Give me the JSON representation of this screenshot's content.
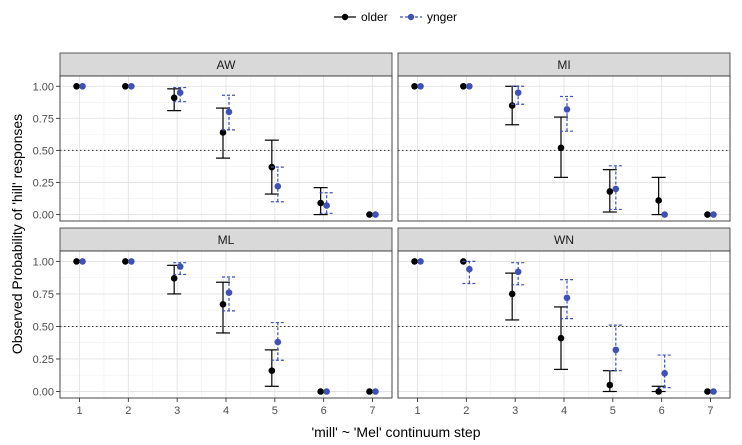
{
  "chart_data": {
    "type": "scatter",
    "xlabel": "'mill' ~ 'Mel' continuum step",
    "ylabel": "Observed Probability of 'hill' responses",
    "x": [
      1,
      2,
      3,
      4,
      5,
      6,
      7
    ],
    "xlim": [
      0.6,
      7.4
    ],
    "ylim": [
      -0.05,
      1.08
    ],
    "yticks": [
      "0.00",
      "0.25",
      "0.50",
      "0.75",
      "1.00"
    ],
    "reference_line": 0.5,
    "grid": true,
    "legend_position": "top",
    "colors": {
      "older": "#000000",
      "ynger": "#3f51b5"
    },
    "legend": [
      {
        "key": "older",
        "label": "older"
      },
      {
        "key": "ynger",
        "label": "ynger"
      }
    ],
    "panels": [
      {
        "label": "AW",
        "series": [
          {
            "name": "older",
            "values": [
              1.0,
              1.0,
              0.91,
              0.64,
              0.37,
              0.09,
              0.0
            ],
            "lower": [
              1.0,
              1.0,
              0.81,
              0.44,
              0.16,
              0.0,
              0.0
            ],
            "upper": [
              1.0,
              1.0,
              0.98,
              0.83,
              0.58,
              0.21,
              0.0
            ]
          },
          {
            "name": "ynger",
            "values": [
              1.0,
              1.0,
              0.95,
              0.8,
              0.22,
              0.07,
              0.0
            ],
            "lower": [
              1.0,
              1.0,
              0.88,
              0.66,
              0.1,
              0.01,
              0.0
            ],
            "upper": [
              1.0,
              1.0,
              0.99,
              0.93,
              0.37,
              0.17,
              0.0
            ]
          }
        ]
      },
      {
        "label": "MI",
        "series": [
          {
            "name": "older",
            "values": [
              1.0,
              1.0,
              0.85,
              0.52,
              0.18,
              0.11,
              0.0
            ],
            "lower": [
              1.0,
              1.0,
              0.7,
              0.29,
              0.02,
              0.0,
              0.0
            ],
            "upper": [
              1.0,
              1.0,
              1.0,
              0.76,
              0.35,
              0.29,
              0.0
            ]
          },
          {
            "name": "ynger",
            "values": [
              1.0,
              1.0,
              0.95,
              0.82,
              0.2,
              0.0,
              0.0
            ],
            "lower": [
              1.0,
              1.0,
              0.86,
              0.65,
              0.04,
              0.0,
              0.0
            ],
            "upper": [
              1.0,
              1.0,
              1.0,
              0.92,
              0.38,
              0.0,
              0.0
            ]
          }
        ]
      },
      {
        "label": "ML",
        "series": [
          {
            "name": "older",
            "values": [
              1.0,
              1.0,
              0.87,
              0.67,
              0.16,
              0.0,
              0.0
            ],
            "lower": [
              1.0,
              1.0,
              0.75,
              0.45,
              0.04,
              0.0,
              0.0
            ],
            "upper": [
              1.0,
              1.0,
              0.97,
              0.84,
              0.32,
              0.0,
              0.0
            ]
          },
          {
            "name": "ynger",
            "values": [
              1.0,
              1.0,
              0.96,
              0.76,
              0.38,
              0.0,
              0.0
            ],
            "lower": [
              1.0,
              1.0,
              0.9,
              0.62,
              0.24,
              0.0,
              0.0
            ],
            "upper": [
              1.0,
              1.0,
              0.99,
              0.88,
              0.53,
              0.0,
              0.0
            ]
          }
        ]
      },
      {
        "label": "WN",
        "series": [
          {
            "name": "older",
            "values": [
              1.0,
              1.0,
              0.75,
              0.41,
              0.05,
              0.0,
              0.0
            ],
            "lower": [
              1.0,
              1.0,
              0.55,
              0.17,
              0.0,
              0.0,
              0.0
            ],
            "upper": [
              1.0,
              1.0,
              0.91,
              0.65,
              0.16,
              0.04,
              0.0
            ]
          },
          {
            "name": "ynger",
            "values": [
              1.0,
              0.94,
              0.92,
              0.72,
              0.32,
              0.14,
              0.0
            ],
            "lower": [
              1.0,
              0.83,
              0.82,
              0.56,
              0.16,
              0.03,
              0.0
            ],
            "upper": [
              1.0,
              1.0,
              0.99,
              0.86,
              0.51,
              0.28,
              0.0
            ]
          }
        ]
      }
    ]
  }
}
